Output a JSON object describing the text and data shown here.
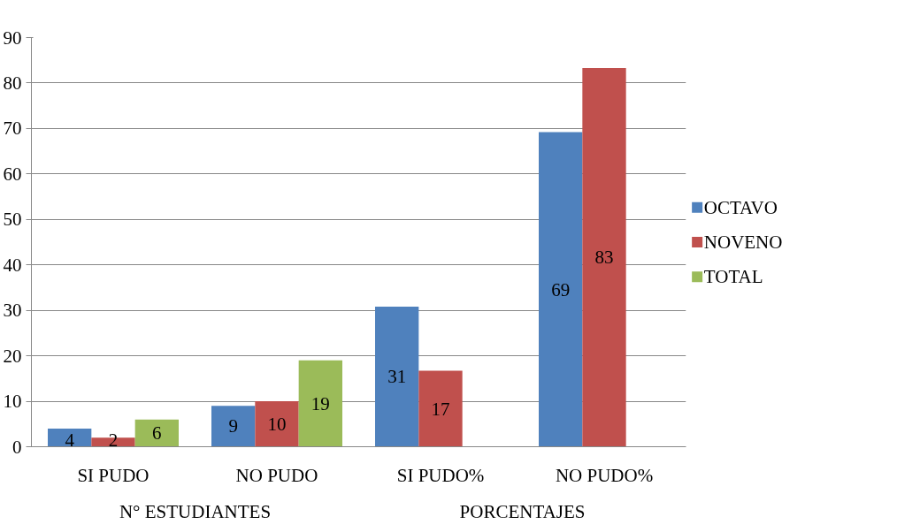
{
  "chart_data": {
    "type": "bar",
    "categories": [
      "SI PUDO",
      "NO PUDO",
      "SI PUDO%",
      "NO PUDO%"
    ],
    "series": [
      {
        "name": "OCTAVO",
        "color": "#4f81bd",
        "values": [
          4,
          9,
          30.8,
          69.2
        ],
        "value_labels": [
          "4",
          "9",
          "31",
          "69"
        ]
      },
      {
        "name": "NOVENO",
        "color": "#c0504d",
        "values": [
          2,
          10,
          16.7,
          83.3
        ],
        "value_labels": [
          "2",
          "10",
          "17",
          "83"
        ]
      },
      {
        "name": "TOTAL",
        "color": "#9bbb59",
        "values": [
          6,
          19,
          null,
          null
        ],
        "value_labels": [
          "6",
          "19",
          null,
          null
        ]
      }
    ],
    "annotations": [
      "N° ESTUDIANTES",
      "PORCENTAJES"
    ],
    "ylim": [
      0,
      90
    ],
    "yticks": [
      0,
      10,
      20,
      30,
      40,
      50,
      60,
      70,
      80,
      90
    ],
    "grid": "y",
    "legend": "right"
  }
}
